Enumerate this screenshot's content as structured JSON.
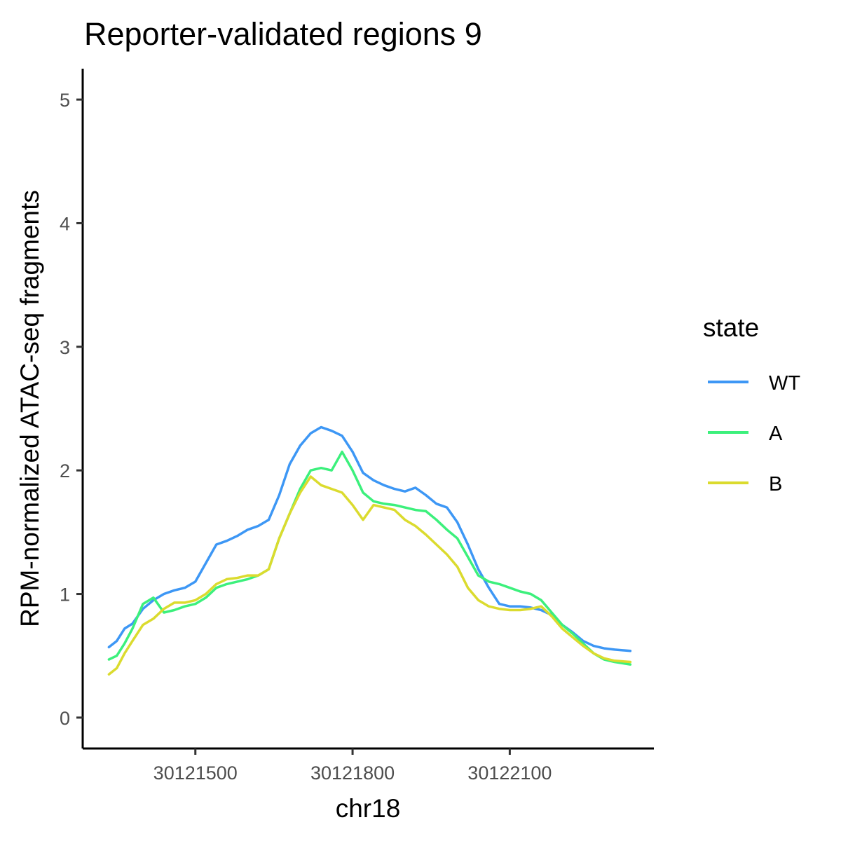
{
  "chart_data": {
    "type": "line",
    "title": "Reporter-validated regions 9",
    "xlabel": "chr18",
    "ylabel": "RPM-normalized ATAC-seq fragments",
    "xlim": [
      30121285,
      30122375
    ],
    "ylim": [
      -0.25,
      5.25
    ],
    "xticks": [
      30121500,
      30121800,
      30122100
    ],
    "yticks": [
      0,
      1,
      2,
      3,
      4,
      5
    ],
    "legend": {
      "title": "state",
      "position": "right"
    },
    "grid": false,
    "x": [
      30121335,
      30121350,
      30121365,
      30121380,
      30121400,
      30121420,
      30121440,
      30121460,
      30121480,
      30121500,
      30121520,
      30121540,
      30121560,
      30121580,
      30121600,
      30121620,
      30121640,
      30121660,
      30121680,
      30121700,
      30121720,
      30121740,
      30121760,
      30121780,
      30121800,
      30121820,
      30121840,
      30121860,
      30121880,
      30121900,
      30121920,
      30121940,
      30121960,
      30121980,
      30122000,
      30122020,
      30122040,
      30122060,
      30122080,
      30122100,
      30122120,
      30122140,
      30122160,
      30122180,
      30122200,
      30122220,
      30122240,
      30122260,
      30122280,
      30122300,
      30122330
    ],
    "series": [
      {
        "name": "WT",
        "color": "#3d97f5",
        "values": [
          0.57,
          0.62,
          0.72,
          0.76,
          0.88,
          0.95,
          1.0,
          1.03,
          1.05,
          1.1,
          1.25,
          1.4,
          1.43,
          1.47,
          1.52,
          1.55,
          1.6,
          1.8,
          2.05,
          2.2,
          2.3,
          2.35,
          2.32,
          2.28,
          2.15,
          1.98,
          1.92,
          1.88,
          1.85,
          1.83,
          1.86,
          1.8,
          1.73,
          1.7,
          1.58,
          1.4,
          1.2,
          1.05,
          0.92,
          0.9,
          0.9,
          0.89,
          0.87,
          0.83,
          0.75,
          0.69,
          0.62,
          0.58,
          0.56,
          0.55,
          0.54
        ]
      },
      {
        "name": "A",
        "color": "#3cf07c",
        "values": [
          0.47,
          0.5,
          0.6,
          0.72,
          0.92,
          0.97,
          0.85,
          0.87,
          0.9,
          0.92,
          0.97,
          1.05,
          1.08,
          1.1,
          1.12,
          1.15,
          1.2,
          1.45,
          1.65,
          1.85,
          2.0,
          2.02,
          2.0,
          2.15,
          2.0,
          1.82,
          1.75,
          1.73,
          1.72,
          1.7,
          1.68,
          1.67,
          1.6,
          1.52,
          1.45,
          1.3,
          1.15,
          1.1,
          1.08,
          1.05,
          1.02,
          1.0,
          0.95,
          0.85,
          0.75,
          0.68,
          0.6,
          0.52,
          0.47,
          0.45,
          0.43
        ]
      },
      {
        "name": "B",
        "color": "#dbdb2e",
        "values": [
          0.35,
          0.4,
          0.52,
          0.62,
          0.75,
          0.8,
          0.88,
          0.93,
          0.93,
          0.95,
          1.0,
          1.08,
          1.12,
          1.13,
          1.15,
          1.15,
          1.2,
          1.45,
          1.65,
          1.82,
          1.95,
          1.88,
          1.85,
          1.82,
          1.72,
          1.6,
          1.72,
          1.7,
          1.68,
          1.6,
          1.55,
          1.48,
          1.4,
          1.32,
          1.22,
          1.05,
          0.95,
          0.9,
          0.88,
          0.87,
          0.87,
          0.88,
          0.9,
          0.82,
          0.72,
          0.65,
          0.58,
          0.52,
          0.48,
          0.46,
          0.45
        ]
      }
    ]
  }
}
